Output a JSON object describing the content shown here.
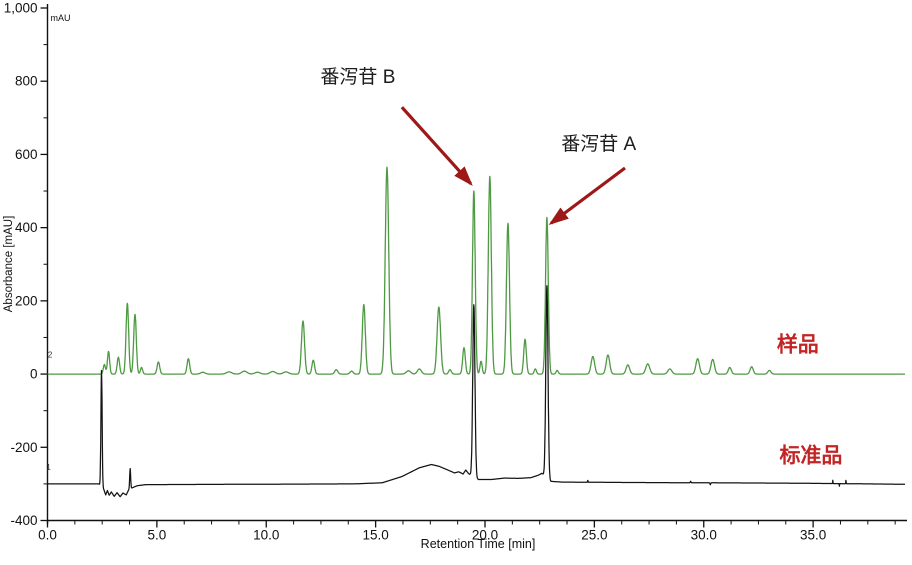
{
  "chart_data": {
    "type": "line",
    "title": "",
    "xlabel": "Retention Time [min]",
    "ylabel": "Absorbance [mAU]",
    "y_unit_label": "mAU",
    "xlim": [
      0,
      39.2
    ],
    "ylim": [
      -400,
      1000
    ],
    "grid": false,
    "legend_position": "none",
    "x_ticks": {
      "values": [
        0,
        5,
        10,
        15,
        20,
        25,
        30,
        35
      ],
      "labels": [
        "0.0",
        "5.0",
        "10.0",
        "15.0",
        "20.0",
        "25.0",
        "30.0",
        "35.0"
      ],
      "minor_step": 1.25,
      "minor_max": 38.75
    },
    "y_ticks": {
      "values": [
        -400,
        -200,
        0,
        200,
        400,
        600,
        800,
        1000
      ],
      "labels": [
        "-400",
        "-200",
        "0",
        "200",
        "400",
        "600",
        "800",
        "1,000"
      ],
      "minor_step": 100
    },
    "series": [
      {
        "name": "样品 (sample)",
        "trace_number": "2",
        "color": "#4e9a42",
        "stroke_width": 1.3,
        "baseline_mau": 0,
        "baseline": [
          [
            0,
            0
          ],
          [
            39.2,
            0
          ]
        ],
        "peaks": [
          [
            2.6,
            26,
            0.05
          ],
          [
            2.79,
            62,
            0.05
          ],
          [
            3.24,
            46,
            0.055
          ],
          [
            3.65,
            193,
            0.06
          ],
          [
            4.0,
            163,
            0.06
          ],
          [
            4.3,
            18,
            0.05
          ],
          [
            5.07,
            33,
            0.06
          ],
          [
            6.44,
            42,
            0.06
          ],
          [
            7.1,
            5,
            0.1
          ],
          [
            8.3,
            6,
            0.12
          ],
          [
            9.0,
            8,
            0.12
          ],
          [
            9.6,
            5,
            0.12
          ],
          [
            10.3,
            7,
            0.12
          ],
          [
            10.9,
            6,
            0.12
          ],
          [
            11.68,
            145,
            0.07
          ],
          [
            12.15,
            38,
            0.06
          ],
          [
            13.2,
            12,
            0.07
          ],
          [
            13.9,
            8,
            0.07
          ],
          [
            14.46,
            190,
            0.07
          ],
          [
            15.52,
            565,
            0.08
          ],
          [
            16.5,
            9,
            0.1
          ],
          [
            17.0,
            14,
            0.09
          ],
          [
            17.89,
            183,
            0.08
          ],
          [
            18.4,
            12,
            0.06
          ],
          [
            19.04,
            72,
            0.06
          ],
          [
            19.49,
            500,
            0.062
          ],
          [
            19.82,
            35,
            0.05
          ],
          [
            20.22,
            540,
            0.07
          ],
          [
            21.05,
            412,
            0.07
          ],
          [
            21.83,
            95,
            0.06
          ],
          [
            22.3,
            14,
            0.05
          ],
          [
            22.83,
            428,
            0.062
          ],
          [
            23.3,
            10,
            0.05
          ],
          [
            24.93,
            48,
            0.08
          ],
          [
            25.62,
            52,
            0.08
          ],
          [
            26.53,
            25,
            0.08
          ],
          [
            27.44,
            28,
            0.09
          ],
          [
            28.45,
            14,
            0.09
          ],
          [
            29.72,
            42,
            0.08
          ],
          [
            30.41,
            40,
            0.08
          ],
          [
            31.19,
            18,
            0.07
          ],
          [
            32.19,
            20,
            0.07
          ],
          [
            33.0,
            10,
            0.07
          ]
        ]
      },
      {
        "name": "标准品 (standard)",
        "trace_number": "1",
        "color": "#141414",
        "stroke_width": 1.25,
        "baseline_mau": -300,
        "baseline": [
          [
            0,
            -300
          ],
          [
            2.35,
            -300
          ],
          [
            2.58,
            -316
          ],
          [
            2.66,
            -330
          ],
          [
            2.74,
            -318
          ],
          [
            2.82,
            -331
          ],
          [
            2.92,
            -322
          ],
          [
            3.05,
            -334
          ],
          [
            3.18,
            -324
          ],
          [
            3.32,
            -335
          ],
          [
            3.45,
            -325
          ],
          [
            3.6,
            -330
          ],
          [
            3.72,
            -315
          ],
          [
            3.9,
            -310
          ],
          [
            4.1,
            -305
          ],
          [
            4.5,
            -302
          ],
          [
            14.0,
            -300
          ],
          [
            15.3,
            -297
          ],
          [
            16.2,
            -280
          ],
          [
            17.0,
            -256
          ],
          [
            17.55,
            -247
          ],
          [
            17.9,
            -252
          ],
          [
            18.3,
            -262
          ],
          [
            18.6,
            -270
          ],
          [
            18.8,
            -267
          ],
          [
            19.0,
            -273
          ],
          [
            19.12,
            -262
          ],
          [
            19.25,
            -272
          ],
          [
            19.7,
            -288
          ],
          [
            20.3,
            -288
          ],
          [
            20.9,
            -284
          ],
          [
            21.5,
            -285
          ],
          [
            22.1,
            -283
          ],
          [
            22.45,
            -276
          ],
          [
            22.6,
            -271
          ],
          [
            23.0,
            -293
          ],
          [
            23.5,
            -295
          ],
          [
            26.0,
            -296
          ],
          [
            30.0,
            -297
          ],
          [
            34.0,
            -298
          ],
          [
            39.2,
            -301
          ]
        ],
        "peaks": [
          [
            2.47,
            318,
            0.028
          ],
          [
            3.78,
            55,
            0.022
          ],
          [
            19.49,
            470,
            0.05
          ],
          [
            22.83,
            525,
            0.05
          ],
          [
            24.7,
            5,
            0.012
          ],
          [
            29.4,
            4,
            0.015
          ],
          [
            30.3,
            -5,
            0.015
          ],
          [
            35.9,
            9,
            0.008
          ],
          [
            36.2,
            -7,
            0.008
          ],
          [
            36.5,
            9,
            0.008
          ]
        ]
      }
    ],
    "annotations": [
      {
        "name": "sennoside-b-label",
        "kind": "peak-label",
        "text": "番泻苷 B",
        "t": 14.19,
        "mau": 795,
        "color": "#1c1c1c",
        "size": 19,
        "bold": false,
        "points_to_peak_min": 19.49
      },
      {
        "name": "sennoside-a-label",
        "kind": "peak-label",
        "text": "番泻苷 A",
        "t": 25.2,
        "mau": 612,
        "color": "#1c1c1c",
        "size": 19,
        "bold": false,
        "points_to_peak_min": 22.83
      },
      {
        "name": "sample-series-label",
        "kind": "series-label",
        "text": "样品",
        "t": 34.3,
        "mau": 62,
        "color": "#c32424",
        "size": 21,
        "bold": true
      },
      {
        "name": "standard-series-label",
        "kind": "series-label",
        "text": "标准品",
        "t": 34.9,
        "mau": -242,
        "color": "#c32424",
        "size": 21,
        "bold": true
      },
      {
        "name": "trace-2-marker",
        "kind": "trace-number",
        "text": "2",
        "t": 0.12,
        "mau": 45,
        "color": "#333333",
        "size": 8,
        "bold": false
      },
      {
        "name": "trace-1-marker",
        "kind": "trace-number",
        "text": "1",
        "t": 0.05,
        "mau": -262,
        "color": "#333333",
        "size": 8,
        "bold": false
      }
    ],
    "arrows": [
      {
        "name": "sennoside-b-arrow",
        "from_t": 16.2,
        "from_mau": 729,
        "to_t": 19.35,
        "to_mau": 520,
        "color": "#9e1818"
      },
      {
        "name": "sennoside-a-arrow",
        "from_t": 26.4,
        "from_mau": 563,
        "to_t": 23.02,
        "to_mau": 412,
        "color": "#9e1818"
      }
    ],
    "colors": {
      "sample_trace": "#4e9a42",
      "standard_trace": "#141414",
      "series_label_red": "#c32424",
      "arrow_red": "#9e1818",
      "axis": "#111111"
    }
  }
}
